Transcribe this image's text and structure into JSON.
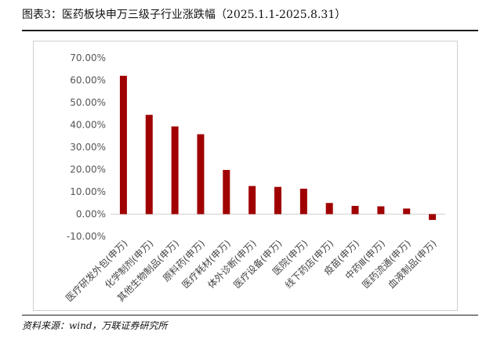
{
  "caption": "图表3：医药板块申万三级子行业涨跌幅（2025.1.1-2025.8.31）",
  "source": "资料来源：wind，万联证券研究所",
  "colors": {
    "bar": "#A00000",
    "axis": "#d0d0d0",
    "tick_text": "#555555"
  },
  "chart_data": {
    "type": "bar",
    "title": "",
    "xlabel": "",
    "ylabel": "",
    "ylim": [
      -10,
      70
    ],
    "yticks": [
      70,
      60,
      50,
      40,
      30,
      20,
      10,
      0,
      -10
    ],
    "ytick_labels": [
      "70.00%",
      "60.00%",
      "50.00%",
      "40.00%",
      "30.00%",
      "20.00%",
      "10.00%",
      "0.00%",
      "-10.00%"
    ],
    "unit": "%",
    "categories": [
      "医疗研发外包(申万)",
      "化学制剂(申万)",
      "其他生物制品(申万)",
      "原料药(申万)",
      "医疗耗材(申万)",
      "体外诊断(申万)",
      "医疗设备(申万)",
      "医院(申万)",
      "线下药店(申万)",
      "疫苗(申万)",
      "中药Ⅲ(申万)",
      "医药流通(申万)",
      "血液制品(申万)"
    ],
    "values": [
      62.0,
      44.5,
      39.3,
      35.8,
      19.8,
      12.6,
      12.2,
      11.4,
      5.0,
      3.7,
      3.5,
      2.5,
      -2.6
    ],
    "grid": false,
    "legend": "none"
  }
}
